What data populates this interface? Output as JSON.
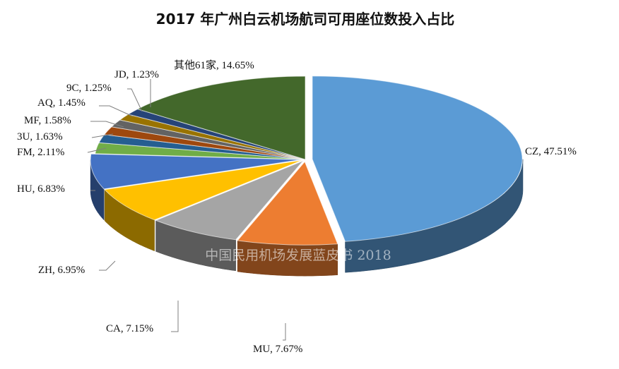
{
  "chart_data": {
    "type": "pie",
    "title": "2017 年广州白云机场航司可用座位数投入占比",
    "watermark": "中国民用机场发展蓝皮书 2018",
    "slices": [
      {
        "label": "CZ",
        "value": 47.51,
        "text": "CZ, 47.51%",
        "color": "#5b9bd5"
      },
      {
        "label": "MU",
        "value": 7.67,
        "text": "MU, 7.67%",
        "color": "#ed7d31"
      },
      {
        "label": "CA",
        "value": 7.15,
        "text": "CA, 7.15%",
        "color": "#a5a5a5"
      },
      {
        "label": "ZH",
        "value": 6.95,
        "text": "ZH, 6.95%",
        "color": "#ffc000"
      },
      {
        "label": "HU",
        "value": 6.83,
        "text": "HU, 6.83%",
        "color": "#4472c4"
      },
      {
        "label": "FM",
        "value": 2.11,
        "text": "FM, 2.11%",
        "color": "#70ad47"
      },
      {
        "label": "3U",
        "value": 1.63,
        "text": "3U, 1.63%",
        "color": "#255e91"
      },
      {
        "label": "MF",
        "value": 1.58,
        "text": "MF, 1.58%",
        "color": "#9e480e"
      },
      {
        "label": "AQ",
        "value": 1.45,
        "text": "AQ, 1.45%",
        "color": "#636363"
      },
      {
        "label": "9C",
        "value": 1.25,
        "text": "9C, 1.25%",
        "color": "#997300"
      },
      {
        "label": "JD",
        "value": 1.23,
        "text": "JD, 1.23%",
        "color": "#264478"
      },
      {
        "label": "其他61家",
        "value": 14.65,
        "text": "其他61家, 14.65%",
        "color": "#43682b"
      }
    ]
  }
}
